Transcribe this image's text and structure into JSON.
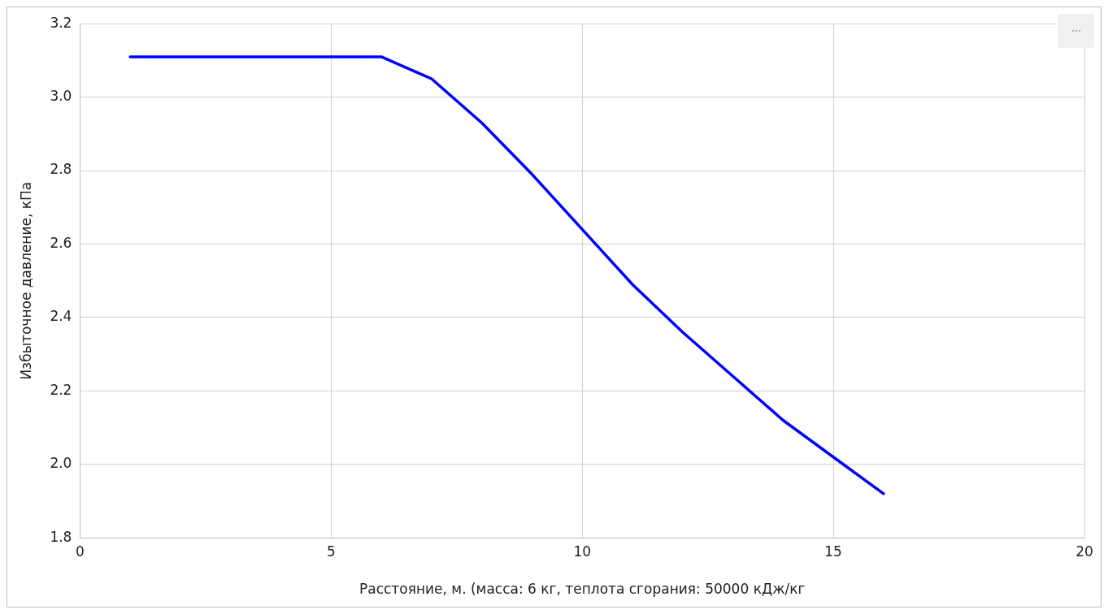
{
  "chart_data": {
    "type": "line",
    "xlabel": "Расстояние, м. (масса: 6 кг, теплота сгорания: 50000 кДж/кг",
    "ylabel": "Избыточное давление, кПа",
    "x": [
      1,
      2,
      3,
      4,
      5,
      6,
      7,
      8,
      9,
      10,
      11,
      12,
      13,
      14,
      15,
      16
    ],
    "series": [
      {
        "color": "#0000ff",
        "values": [
          3.11,
          3.11,
          3.11,
          3.11,
          3.11,
          3.11,
          3.05,
          2.93,
          2.79,
          2.64,
          2.49,
          2.36,
          2.24,
          2.12,
          2.02,
          1.92
        ]
      }
    ],
    "xlim": [
      0,
      20
    ],
    "xticks": [
      0,
      5,
      10,
      15,
      20
    ],
    "ylim": [
      1.8,
      3.2
    ],
    "yticks": [
      {
        "value": 1.8,
        "label": "1.8"
      },
      {
        "value": 2,
        "label": "2.0"
      },
      {
        "value": 2.2,
        "label": "2.2"
      },
      {
        "value": 2.4,
        "label": "2.4"
      },
      {
        "value": 2.6,
        "label": "2.6"
      },
      {
        "value": 2.8,
        "label": "2.8"
      },
      {
        "value": 3,
        "label": "3.0"
      },
      {
        "value": 3.2,
        "label": "3.2"
      }
    ],
    "grid": true,
    "legend": false,
    "marker": "none",
    "line_style": "solid"
  }
}
